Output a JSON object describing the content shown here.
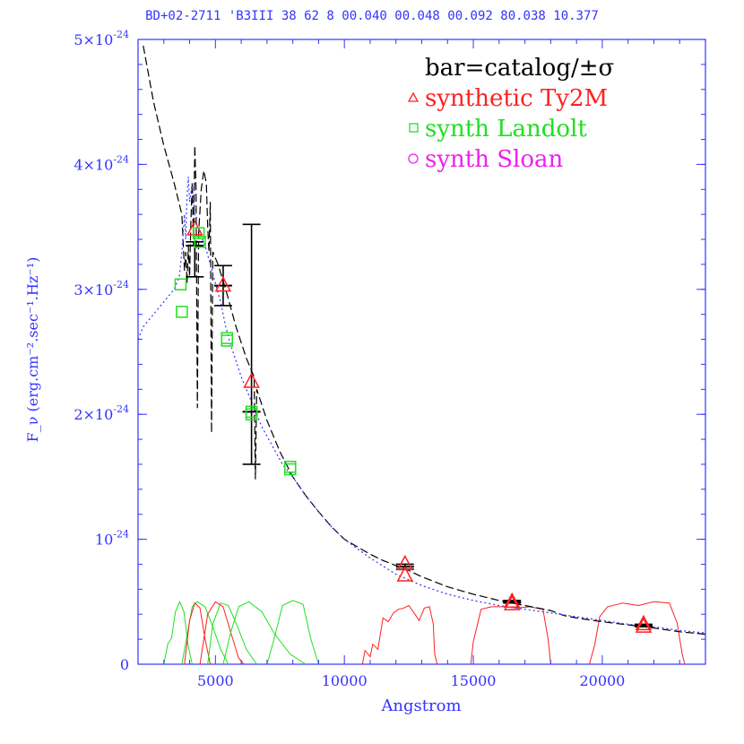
{
  "header": {
    "text": "BD+02-2711  'B3III 38 62 8 00.040 00.048 00.092 80.038 10.377"
  },
  "chart_data": {
    "type": "scatter",
    "xlabel": "Angstrom",
    "ylabel": "F_ν (erg.cm⁻².sec⁻¹.Hz⁻¹)",
    "xlim": [
      2000,
      24000
    ],
    "ylim": [
      0,
      5e-24
    ],
    "x_ticks": [
      5000,
      10000,
      15000,
      20000
    ],
    "x_tick_labels": [
      "5000",
      "10000",
      "15000",
      "20000"
    ],
    "y_ticks": [
      0,
      1e-24,
      2e-24,
      3e-24,
      4e-24,
      5e-24
    ],
    "y_tick_labels": [
      {
        "mantissa": "0",
        "exp": ""
      },
      {
        "mantissa": "10",
        "exp": "-24"
      },
      {
        "mantissa": "2×10",
        "exp": "-24"
      },
      {
        "mantissa": "3×10",
        "exp": "-24"
      },
      {
        "mantissa": "4×10",
        "exp": "-24"
      },
      {
        "mantissa": "5×10",
        "exp": "-24"
      }
    ],
    "legend": {
      "placement": "top-right",
      "entries": [
        {
          "symbol": "none",
          "label": "bar=catalog/±σ",
          "color": "#000000"
        },
        {
          "symbol": "triangle",
          "label": "synthetic Ty2M",
          "color": "#ff2020"
        },
        {
          "symbol": "square",
          "label": "synth Landolt",
          "color": "#20e020"
        },
        {
          "symbol": "circle",
          "label": "synth Sloan",
          "color": "#ee20ee"
        }
      ]
    },
    "series": [
      {
        "name": "catalog",
        "style": "errorbar",
        "color": "#000000",
        "points": [
          {
            "x": 4200,
            "y": 3.35e-24,
            "lo": 3.1e-24,
            "hi": 3.38e-24
          },
          {
            "x": 5300,
            "y": 3.03e-24,
            "lo": 2.87e-24,
            "hi": 3.19e-24
          },
          {
            "x": 6400,
            "y": 2.02e-24,
            "lo": 1.6e-24,
            "hi": 3.52e-24
          },
          {
            "x": 12350,
            "y": 7.8e-25,
            "lo": 7.6e-25,
            "hi": 8e-25
          },
          {
            "x": 16500,
            "y": 5e-25,
            "lo": 4.9e-25,
            "hi": 5.1e-25
          },
          {
            "x": 21600,
            "y": 3.1e-25,
            "lo": 3e-25,
            "hi": 3.2e-25
          }
        ]
      },
      {
        "name": "synthetic Ty2M",
        "style": "triangle",
        "color": "#ff2020",
        "points": [
          {
            "x": 4200,
            "y": 3.48e-24
          },
          {
            "x": 5300,
            "y": 3.03e-24
          },
          {
            "x": 6400,
            "y": 2.26e-24
          },
          {
            "x": 12350,
            "y": 8e-25
          },
          {
            "x": 12350,
            "y": 7.1e-25
          },
          {
            "x": 16500,
            "y": 5e-25
          },
          {
            "x": 16500,
            "y": 4.8e-25
          },
          {
            "x": 21600,
            "y": 3.2e-25
          },
          {
            "x": 21600,
            "y": 3e-25
          }
        ]
      },
      {
        "name": "synth Landolt",
        "style": "square",
        "color": "#20e020",
        "points": [
          {
            "x": 3650,
            "y": 3.04e-24
          },
          {
            "x": 3700,
            "y": 2.82e-24
          },
          {
            "x": 4350,
            "y": 3.45e-24
          },
          {
            "x": 4400,
            "y": 3.38e-24
          },
          {
            "x": 5450,
            "y": 2.61e-24
          },
          {
            "x": 5450,
            "y": 2.59e-24
          },
          {
            "x": 6400,
            "y": 2.02e-24
          },
          {
            "x": 6400,
            "y": 2e-24
          },
          {
            "x": 7900,
            "y": 1.58e-24
          },
          {
            "x": 7900,
            "y": 1.56e-24
          }
        ]
      },
      {
        "name": "model spectrum (dashed)",
        "style": "dashed",
        "color": "#000000",
        "points": [
          [
            2200,
            4.95e-24
          ],
          [
            2600,
            4.5e-24
          ],
          [
            3000,
            4.15e-24
          ],
          [
            3400,
            3.85e-24
          ],
          [
            3700,
            3.6e-24
          ],
          [
            3800,
            3.15e-24
          ],
          [
            3850,
            3.3e-24
          ],
          [
            3900,
            3.05e-24
          ],
          [
            3950,
            3.35e-24
          ],
          [
            4000,
            3.1e-24
          ],
          [
            4050,
            3.55e-24
          ],
          [
            4100,
            3.85e-24
          ],
          [
            4150,
            3.35e-24
          ],
          [
            4200,
            4.15e-24
          ],
          [
            4250,
            3.8e-24
          ],
          [
            4300,
            2.05e-24
          ],
          [
            4350,
            3.45e-24
          ],
          [
            4450,
            3.8e-24
          ],
          [
            4550,
            3.95e-24
          ],
          [
            4650,
            3.85e-24
          ],
          [
            4700,
            3.5e-24
          ],
          [
            4750,
            3.3e-24
          ],
          [
            4800,
            3.7e-24
          ],
          [
            4850,
            1.85e-24
          ],
          [
            4900,
            3.3e-24
          ],
          [
            5100,
            3.2e-24
          ],
          [
            5400,
            3e-24
          ],
          [
            5800,
            2.7e-24
          ],
          [
            6200,
            2.45e-24
          ],
          [
            6500,
            2.3e-24
          ],
          [
            6550,
            1.48e-24
          ],
          [
            6600,
            2.2e-24
          ],
          [
            7000,
            1.95e-24
          ],
          [
            7500,
            1.7e-24
          ],
          [
            8000,
            1.5e-24
          ],
          [
            8500,
            1.35e-24
          ],
          [
            9000,
            1.22e-24
          ],
          [
            9500,
            1.1e-24
          ],
          [
            10000,
            1e-24
          ],
          [
            10500,
            9.4e-25
          ],
          [
            11000,
            8.8e-25
          ],
          [
            11500,
            8.3e-25
          ],
          [
            12000,
            7.9e-25
          ],
          [
            12500,
            7.5e-25
          ],
          [
            13000,
            7e-25
          ],
          [
            14000,
            6.2e-25
          ],
          [
            15000,
            5.6e-25
          ],
          [
            16000,
            5.1e-25
          ],
          [
            17000,
            4.7e-25
          ],
          [
            18000,
            4.3e-25
          ],
          [
            18500,
            3.9e-25
          ],
          [
            19000,
            3.7e-25
          ],
          [
            20000,
            3.4e-25
          ],
          [
            21000,
            3.15e-25
          ],
          [
            22000,
            2.9e-25
          ],
          [
            23000,
            2.6e-25
          ],
          [
            24000,
            2.4e-25
          ]
        ]
      },
      {
        "name": "observed spectrum (dotted)",
        "style": "dotted",
        "color": "#3333ff",
        "points": [
          [
            2000,
            2.6e-24
          ],
          [
            2200,
            2.7e-24
          ],
          [
            2400,
            2.75e-24
          ],
          [
            2600,
            2.8e-24
          ],
          [
            2800,
            2.85e-24
          ],
          [
            3000,
            2.9e-24
          ],
          [
            3200,
            2.95e-24
          ],
          [
            3400,
            3e-24
          ],
          [
            3600,
            3.1e-24
          ],
          [
            3700,
            3.3e-24
          ],
          [
            3800,
            3.6e-24
          ],
          [
            3850,
            3.4e-24
          ],
          [
            3900,
            3.75e-24
          ],
          [
            3950,
            3.9e-24
          ],
          [
            4000,
            3.7e-24
          ],
          [
            4100,
            3.85e-24
          ],
          [
            4200,
            3.6e-24
          ],
          [
            4300,
            3.5e-24
          ],
          [
            4400,
            3.45e-24
          ],
          [
            4600,
            3.35e-24
          ],
          [
            4800,
            3.2e-24
          ],
          [
            5000,
            3.05e-24
          ],
          [
            5200,
            2.9e-24
          ],
          [
            5400,
            2.7e-24
          ],
          [
            5600,
            2.55e-24
          ],
          [
            6000,
            2.3e-24
          ],
          [
            6400,
            2.1e-24
          ],
          [
            6800,
            1.9e-24
          ],
          [
            7200,
            1.75e-24
          ],
          [
            7600,
            1.6e-24
          ],
          [
            8000,
            1.5e-24
          ],
          [
            8500,
            1.35e-24
          ],
          [
            9000,
            1.22e-24
          ],
          [
            9500,
            1.1e-24
          ],
          [
            10000,
            1e-24
          ],
          [
            11000,
            8.5e-25
          ],
          [
            12000,
            7.2e-25
          ],
          [
            13000,
            6.3e-25
          ],
          [
            14000,
            5.6e-25
          ],
          [
            15000,
            5.1e-25
          ],
          [
            16000,
            4.7e-25
          ],
          [
            17000,
            4.4e-25
          ],
          [
            18000,
            4.1e-25
          ],
          [
            19000,
            3.8e-25
          ],
          [
            20000,
            3.5e-25
          ],
          [
            21000,
            3.2e-25
          ],
          [
            22000,
            3e-25
          ],
          [
            23000,
            2.7e-25
          ],
          [
            24000,
            2.5e-25
          ]
        ]
      },
      {
        "name": "filter curves (Landolt)",
        "style": "filter",
        "color": "#20e020",
        "points": [
          [
            3000,
            0
          ],
          [
            3200,
            1.8e-25
          ],
          [
            3400,
            2.2e-25
          ],
          [
            3500,
            4.5e-25
          ],
          [
            3650,
            5e-25
          ],
          [
            3800,
            4e-25
          ],
          [
            4000,
            1e-25
          ],
          [
            4100,
            0
          ]
        ]
      }
    ]
  }
}
